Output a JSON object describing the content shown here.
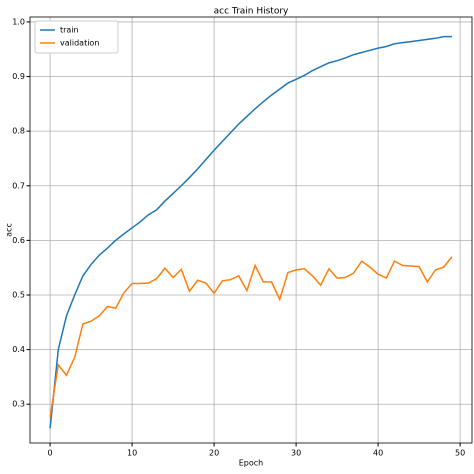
{
  "chart_data": {
    "type": "line",
    "title": "acc Train History",
    "x_label": "Epoch",
    "y_label": "acc",
    "x": [
      0,
      1,
      2,
      3,
      4,
      5,
      6,
      7,
      8,
      9,
      10,
      11,
      12,
      13,
      14,
      15,
      16,
      17,
      18,
      19,
      20,
      21,
      22,
      23,
      24,
      25,
      26,
      27,
      28,
      29,
      30,
      31,
      32,
      33,
      34,
      35,
      36,
      37,
      38,
      39,
      40,
      41,
      42,
      43,
      44,
      45,
      46,
      47,
      48,
      49
    ],
    "series": [
      {
        "name": "train",
        "color": "#1f77b4",
        "values": [
          0.256,
          0.4,
          0.462,
          0.5,
          0.535,
          0.556,
          0.573,
          0.586,
          0.6,
          0.612,
          0.623,
          0.634,
          0.647,
          0.656,
          0.672,
          0.686,
          0.7,
          0.715,
          0.731,
          0.748,
          0.765,
          0.781,
          0.797,
          0.813,
          0.827,
          0.841,
          0.854,
          0.866,
          0.877,
          0.888,
          0.895,
          0.902,
          0.911,
          0.918,
          0.925,
          0.929,
          0.934,
          0.94,
          0.944,
          0.948,
          0.952,
          0.955,
          0.96,
          0.962,
          0.964,
          0.966,
          0.968,
          0.97,
          0.973,
          0.973
        ]
      },
      {
        "name": "validation",
        "color": "#ff7f0e",
        "values": [
          0.276,
          0.372,
          0.353,
          0.386,
          0.447,
          0.452,
          0.462,
          0.479,
          0.476,
          0.504,
          0.521,
          0.521,
          0.522,
          0.53,
          0.549,
          0.532,
          0.547,
          0.507,
          0.527,
          0.522,
          0.503,
          0.526,
          0.528,
          0.535,
          0.508,
          0.554,
          0.524,
          0.524,
          0.492,
          0.541,
          0.546,
          0.548,
          0.535,
          0.518,
          0.548,
          0.531,
          0.532,
          0.54,
          0.562,
          0.551,
          0.538,
          0.531,
          0.562,
          0.554,
          0.553,
          0.552,
          0.524,
          0.546,
          0.551,
          0.57
        ]
      }
    ],
    "xlim": [
      -2.45,
      51.45
    ],
    "xticks": [
      0,
      10,
      20,
      30,
      40,
      50
    ],
    "ylim": [
      0.229,
      1.009
    ],
    "yticks": [
      0.3,
      0.4,
      0.5,
      0.6,
      0.7,
      0.8,
      0.9,
      {
        "value": 1,
        "label": "1.0"
      }
    ],
    "grid": true,
    "legend": "upper-left"
  }
}
